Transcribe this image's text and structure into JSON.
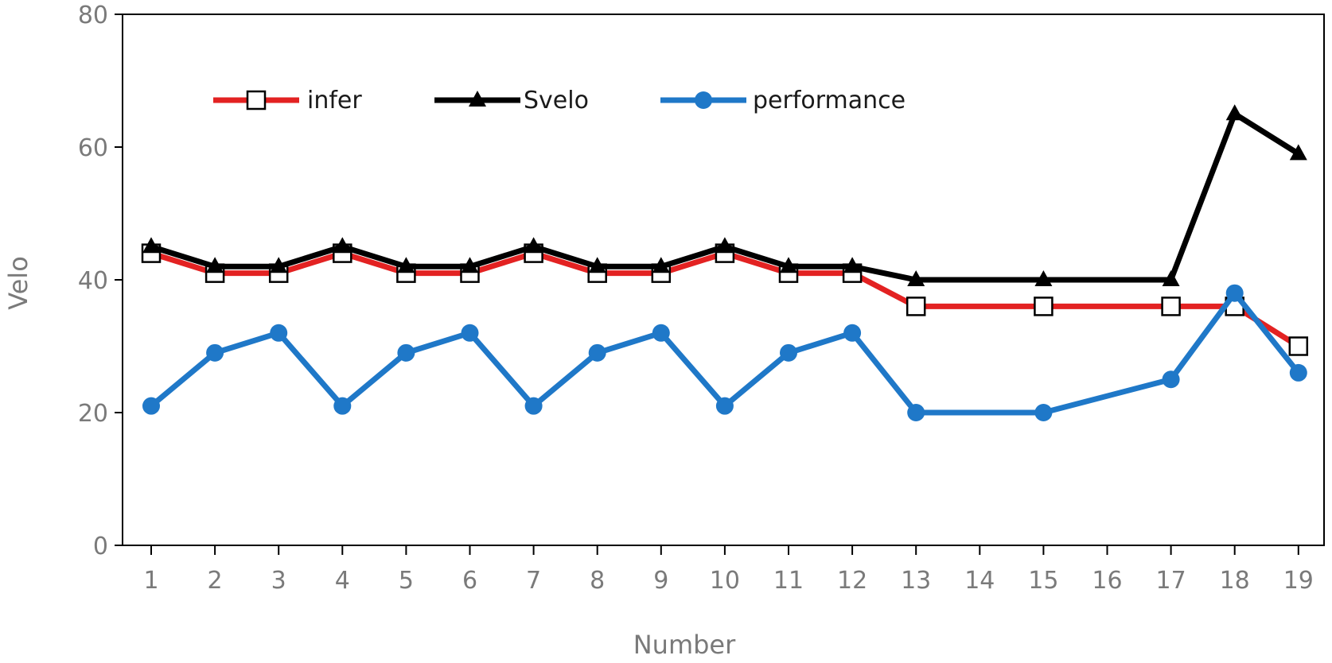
{
  "chart_data": {
    "type": "line",
    "xlabel": "Number",
    "ylabel": "Velo",
    "categories": [
      "1",
      "2",
      "3",
      "4",
      "5",
      "6",
      "7",
      "8",
      "9",
      "10",
      "11",
      "12",
      "13",
      "14",
      "15",
      "16",
      "17",
      "18",
      "19"
    ],
    "ylim": [
      0,
      80
    ],
    "yticks": [
      0,
      20,
      40,
      60,
      80
    ],
    "grid": false,
    "legend_position": "top-left",
    "series": [
      {
        "name": "infer",
        "color": "#e32222",
        "marker": "square-open",
        "points": [
          {
            "x": "1",
            "y": 44
          },
          {
            "x": "2",
            "y": 41
          },
          {
            "x": "3",
            "y": 41
          },
          {
            "x": "4",
            "y": 44
          },
          {
            "x": "5",
            "y": 41
          },
          {
            "x": "6",
            "y": 41
          },
          {
            "x": "7",
            "y": 44
          },
          {
            "x": "8",
            "y": 41
          },
          {
            "x": "9",
            "y": 41
          },
          {
            "x": "10",
            "y": 44
          },
          {
            "x": "11",
            "y": 41
          },
          {
            "x": "12",
            "y": 41
          },
          {
            "x": "13",
            "y": 36
          },
          {
            "x": "15",
            "y": 36
          },
          {
            "x": "17",
            "y": 36
          },
          {
            "x": "18",
            "y": 36
          },
          {
            "x": "19",
            "y": 30
          }
        ]
      },
      {
        "name": "Svelo",
        "color": "#000000",
        "marker": "triangle",
        "points": [
          {
            "x": "1",
            "y": 45
          },
          {
            "x": "2",
            "y": 42
          },
          {
            "x": "3",
            "y": 42
          },
          {
            "x": "4",
            "y": 45
          },
          {
            "x": "5",
            "y": 42
          },
          {
            "x": "6",
            "y": 42
          },
          {
            "x": "7",
            "y": 45
          },
          {
            "x": "8",
            "y": 42
          },
          {
            "x": "9",
            "y": 42
          },
          {
            "x": "10",
            "y": 45
          },
          {
            "x": "11",
            "y": 42
          },
          {
            "x": "12",
            "y": 42
          },
          {
            "x": "13",
            "y": 40
          },
          {
            "x": "15",
            "y": 40
          },
          {
            "x": "17",
            "y": 40
          },
          {
            "x": "18",
            "y": 65
          },
          {
            "x": "19",
            "y": 59
          }
        ]
      },
      {
        "name": "performance",
        "color": "#1f78c8",
        "marker": "circle",
        "points": [
          {
            "x": "1",
            "y": 21
          },
          {
            "x": "2",
            "y": 29
          },
          {
            "x": "3",
            "y": 32
          },
          {
            "x": "4",
            "y": 21
          },
          {
            "x": "5",
            "y": 29
          },
          {
            "x": "6",
            "y": 32
          },
          {
            "x": "7",
            "y": 21
          },
          {
            "x": "8",
            "y": 29
          },
          {
            "x": "9",
            "y": 32
          },
          {
            "x": "10",
            "y": 21
          },
          {
            "x": "11",
            "y": 29
          },
          {
            "x": "12",
            "y": 32
          },
          {
            "x": "13",
            "y": 20
          },
          {
            "x": "15",
            "y": 20
          },
          {
            "x": "17",
            "y": 25
          },
          {
            "x": "18",
            "y": 38
          },
          {
            "x": "19",
            "y": 26
          }
        ]
      }
    ]
  }
}
